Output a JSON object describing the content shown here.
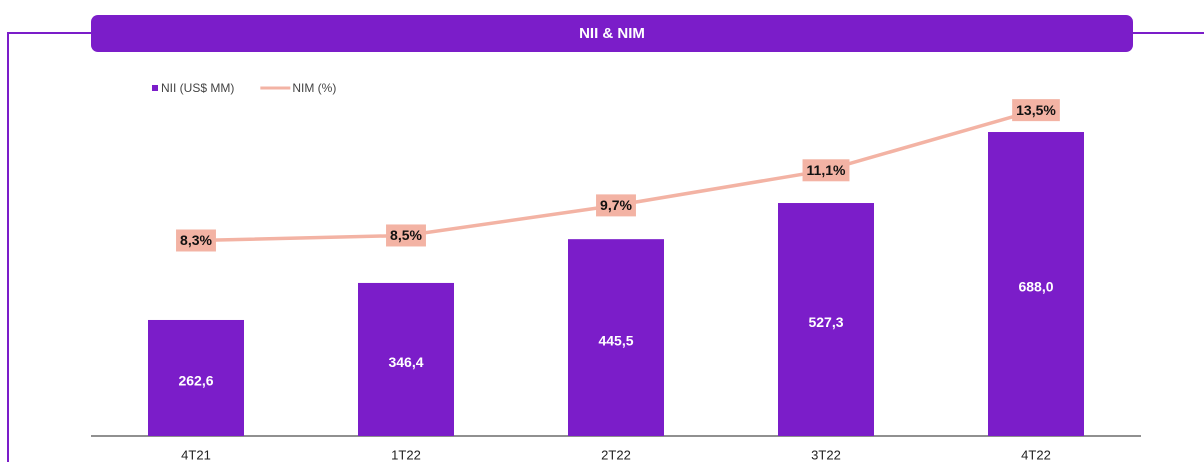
{
  "chart_data": {
    "type": "bar",
    "title": "NII & NIM",
    "categories": [
      "4T21",
      "1T22",
      "2T22",
      "3T22",
      "4T22"
    ],
    "series": [
      {
        "name": "NII (US$ MM)",
        "type": "bar",
        "color": "#7b1dc9",
        "values": [
          262.6,
          346.4,
          445.5,
          527.3,
          688.0
        ],
        "value_labels": [
          "262,6",
          "346,4",
          "445,5",
          "527,3",
          "688,0"
        ]
      },
      {
        "name": "NIM (%)",
        "type": "line",
        "axis": "y2",
        "color": "#f3b3a4",
        "values": [
          8.3,
          8.5,
          9.7,
          11.1,
          13.5
        ],
        "value_labels": [
          "8,3%",
          "8,5%",
          "9,7%",
          "11,1%",
          "13,5%"
        ]
      }
    ],
    "ylim": [
      0,
      851
    ],
    "y2lim": [
      0.5,
      15.5
    ]
  }
}
